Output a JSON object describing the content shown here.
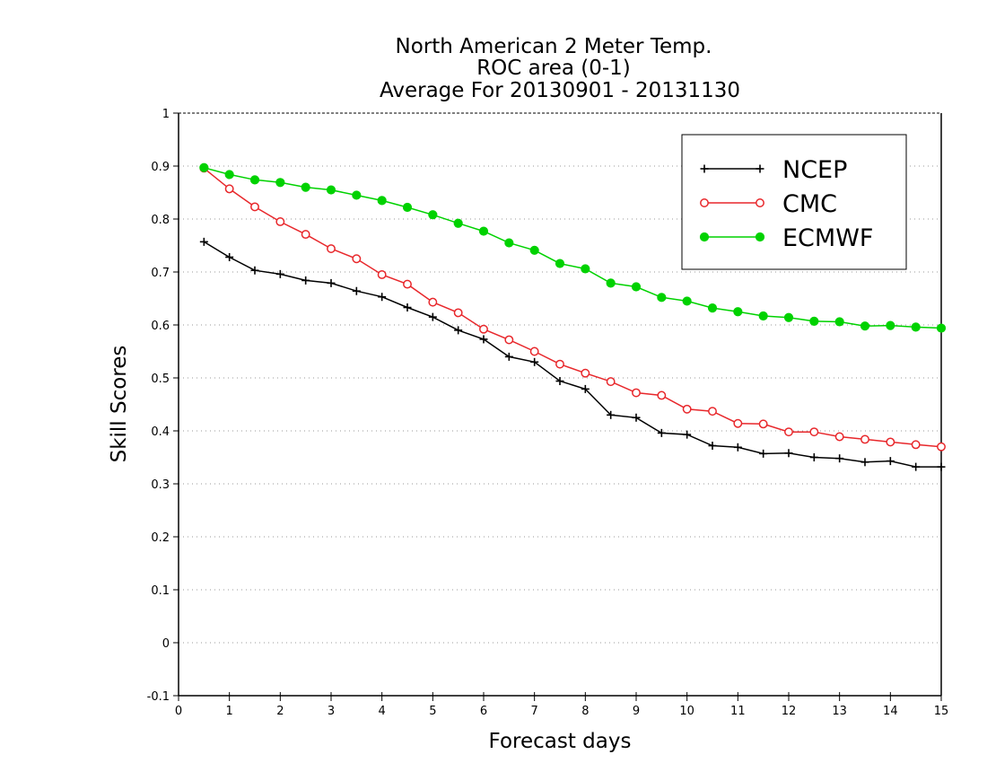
{
  "chart_data": {
    "type": "line",
    "title_lines": [
      "North American 2 Meter Temp.",
      "ROC area (0-1)",
      "Average For 20130901 - 20131130"
    ],
    "xlabel": "Forecast days",
    "ylabel": "Skill Scores",
    "xlim": [
      0,
      15
    ],
    "ylim": [
      -0.1,
      1
    ],
    "x_ticks": [
      "0",
      "1",
      "2",
      "3",
      "4",
      "5",
      "6",
      "7",
      "8",
      "9",
      "10",
      "11",
      "12",
      "13",
      "14",
      "15"
    ],
    "y_ticks": [
      "-0.1",
      "0",
      "0.1",
      "0.2",
      "0.3",
      "0.4",
      "0.5",
      "0.6",
      "0.7",
      "0.8",
      "0.9",
      "1"
    ],
    "grid": "horizontal dotted",
    "legend_position": "top-right",
    "x": [
      0.5,
      1,
      1.5,
      2,
      2.5,
      3,
      3.5,
      4,
      4.5,
      5,
      5.5,
      6,
      6.5,
      7,
      7.5,
      8,
      8.5,
      9,
      9.5,
      10,
      10.5,
      11,
      11.5,
      12,
      12.5,
      13,
      13.5,
      14,
      14.5,
      15
    ],
    "series": [
      {
        "name": "NCEP",
        "color": "#000000",
        "marker": "plus",
        "values": [
          0.757,
          0.728,
          0.703,
          0.696,
          0.684,
          0.679,
          0.664,
          0.653,
          0.633,
          0.615,
          0.59,
          0.573,
          0.54,
          0.53,
          0.494,
          0.479,
          0.43,
          0.425,
          0.396,
          0.393,
          0.372,
          0.369,
          0.357,
          0.358,
          0.35,
          0.348,
          0.341,
          0.343,
          0.332,
          0.332
        ]
      },
      {
        "name": "CMC",
        "color": "#e8272b",
        "marker": "open-circle",
        "values": [
          0.896,
          0.857,
          0.823,
          0.795,
          0.771,
          0.744,
          0.725,
          0.695,
          0.677,
          0.643,
          0.623,
          0.592,
          0.572,
          0.55,
          0.526,
          0.509,
          0.493,
          0.472,
          0.467,
          0.441,
          0.437,
          0.414,
          0.413,
          0.398,
          0.398,
          0.389,
          0.384,
          0.379,
          0.374,
          0.37
        ]
      },
      {
        "name": "ECMWF",
        "color": "#00d200",
        "marker": "filled-circle",
        "values": [
          0.897,
          0.884,
          0.874,
          0.869,
          0.86,
          0.855,
          0.845,
          0.835,
          0.822,
          0.808,
          0.792,
          0.777,
          0.755,
          0.741,
          0.716,
          0.706,
          0.679,
          0.672,
          0.652,
          0.645,
          0.632,
          0.625,
          0.617,
          0.614,
          0.607,
          0.606,
          0.598,
          0.599,
          0.596,
          0.594
        ]
      }
    ]
  }
}
